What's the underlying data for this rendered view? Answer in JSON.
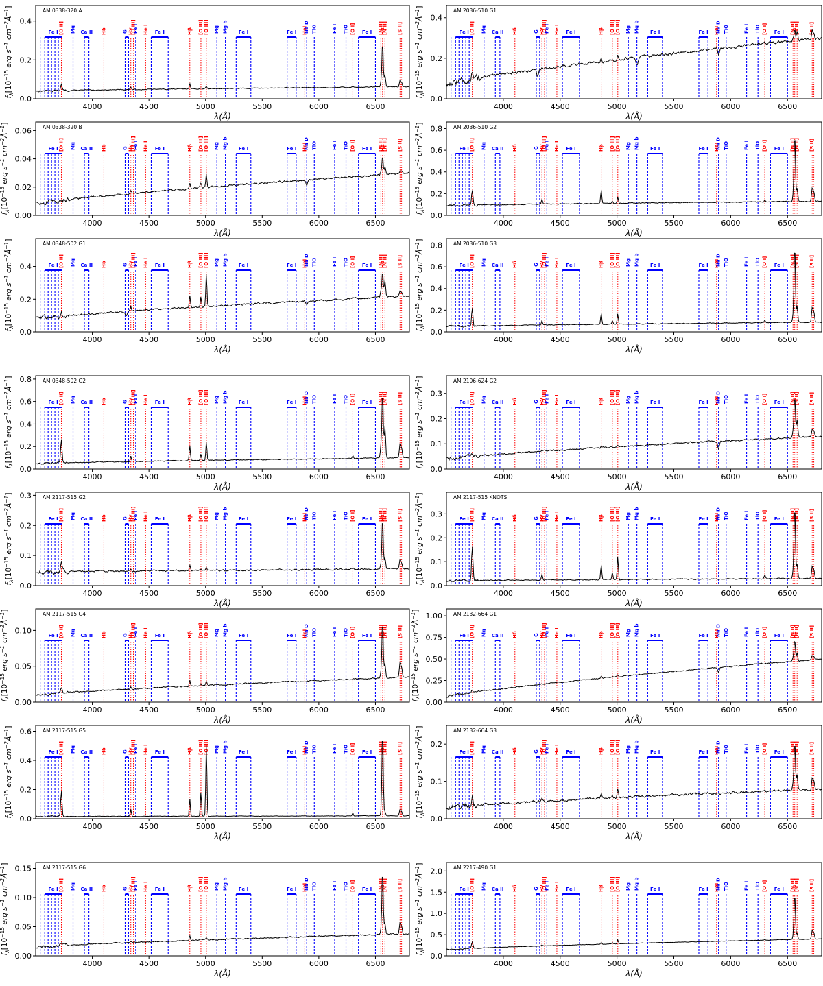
{
  "chart_data": [
    {
      "type": "line",
      "title": "AM 0338-320 A",
      "ylim": [
        0,
        0.48
      ],
      "yticks": [
        0,
        0.2,
        0.4
      ],
      "baseline": [
        0.04,
        0.062
      ],
      "emission": {
        "OII": 0.03,
        "Hb": 0.03,
        "OIII": 0.01,
        "Ha": 0.23,
        "NII": 0.06,
        "SII": 0.03
      },
      "noise": 0.004,
      "absorption": {}
    },
    {
      "type": "line",
      "title": "AM 2036-510 G1",
      "ylim": [
        0,
        0.46
      ],
      "yticks": [
        0,
        0.2,
        0.4
      ],
      "baseline": [
        0.07,
        0.3
      ],
      "emission": {
        "OII": 0.03,
        "Hb": 0.02,
        "OIII": 0.02,
        "Ha": 0.06,
        "NII": 0.04,
        "SII": 0.04
      },
      "noise": 0.012,
      "absorption": {
        "NaD": 0.03,
        "Mgb": 0.04,
        "G": 0.03
      }
    },
    {
      "type": "line",
      "title": "AM 0338-320 B",
      "ylim": [
        0,
        0.066
      ],
      "yticks": [
        0,
        0.02,
        0.04,
        0.06
      ],
      "baseline": [
        0.008,
        0.03
      ],
      "emission": {
        "OII": 0.001,
        "Hb": 0.004,
        "OIII": 0.01,
        "Ha": 0.013,
        "NII": 0.006,
        "SII": 0.002
      },
      "noise": 0.0012,
      "absorption": {
        "NaD": 0.004
      }
    },
    {
      "type": "line",
      "title": "AM 2036-510 G2",
      "ylim": [
        0,
        0.86
      ],
      "yticks": [
        0,
        0.2,
        0.4,
        0.6,
        0.8
      ],
      "baseline": [
        0.09,
        0.13
      ],
      "emission": {
        "OII": 0.15,
        "Hb": 0.12,
        "OIII": 0.06,
        "Ha": 0.63,
        "NII": 0.12,
        "SII": 0.12
      },
      "noise": 0.008,
      "absorption": {}
    },
    {
      "type": "line",
      "title": "AM 0348-502 G1",
      "ylim": [
        0,
        0.57
      ],
      "yticks": [
        0,
        0.2,
        0.4
      ],
      "baseline": [
        0.08,
        0.22
      ],
      "emission": {
        "OII": 0.03,
        "Hb": 0.08,
        "OIII": 0.2,
        "Ha": 0.16,
        "NII": 0.1,
        "SII": 0.03
      },
      "noise": 0.01,
      "absorption": {
        "NaD": 0.02,
        "G": 0.03
      }
    },
    {
      "type": "line",
      "title": "AM 2036-510 G3",
      "ylim": [
        0,
        0.86
      ],
      "yticks": [
        0,
        0.2,
        0.4,
        0.6,
        0.8
      ],
      "baseline": [
        0.05,
        0.09
      ],
      "emission": {
        "OII": 0.17,
        "Hb": 0.1,
        "OIII": 0.1,
        "Ha": 0.72,
        "NII": 0.15,
        "SII": 0.13
      },
      "noise": 0.007,
      "absorption": {}
    },
    {
      "type": "line",
      "title": "AM 0348-502 G2",
      "ylim": [
        0,
        0.83
      ],
      "yticks": [
        0,
        0.2,
        0.4,
        0.6,
        0.8
      ],
      "baseline": [
        0.05,
        0.1
      ],
      "emission": {
        "OII": 0.21,
        "Hb": 0.13,
        "OIII": 0.17,
        "Ha": 0.6,
        "NII": 0.28,
        "SII": 0.12
      },
      "noise": 0.007,
      "absorption": {}
    },
    {
      "type": "line",
      "title": "AM 2106-624 G2",
      "ylim": [
        0,
        0.37
      ],
      "yticks": [
        0,
        0.1,
        0.2,
        0.3
      ],
      "baseline": [
        0.04,
        0.13
      ],
      "emission": {
        "OII": 0.01,
        "Hb": 0.005,
        "OIII": 0.005,
        "Ha": 0.17,
        "NII": 0.07,
        "SII": 0.03
      },
      "noise": 0.006,
      "absorption": {
        "NaD": 0.03
      }
    },
    {
      "type": "line",
      "title": "AM 2117-515 G2",
      "ylim": [
        0,
        0.31
      ],
      "yticks": [
        0,
        0.1,
        0.2,
        0.3
      ],
      "baseline": [
        0.045,
        0.055
      ],
      "emission": {
        "OII": 0.03,
        "Hb": 0.02,
        "OIII": 0.01,
        "Ha": 0.17,
        "NII": 0.04,
        "SII": 0.03
      },
      "noise": 0.005,
      "absorption": {}
    },
    {
      "type": "line",
      "title": "AM 2117-515 KNOTS",
      "ylim": [
        0,
        0.39
      ],
      "yticks": [
        0,
        0.1,
        0.2,
        0.3
      ],
      "baseline": [
        0.02,
        0.03
      ],
      "emission": {
        "OII": 0.14,
        "Hb": 0.06,
        "OIII": 0.1,
        "Ha": 0.31,
        "NII": 0.06,
        "SII": 0.05
      },
      "noise": 0.004,
      "absorption": {}
    },
    {
      "type": "line",
      "title": "AM 2117-515 G4",
      "ylim": [
        0,
        0.13
      ],
      "yticks": [
        0,
        0.05,
        0.1
      ],
      "baseline": [
        0.01,
        0.035
      ],
      "emission": {
        "OII": 0.006,
        "Hb": 0.008,
        "OIII": 0.006,
        "Ha": 0.08,
        "NII": 0.02,
        "SII": 0.02
      },
      "noise": 0.0015,
      "absorption": {}
    },
    {
      "type": "line",
      "title": "AM 2132-664 G1",
      "ylim": [
        0,
        1.08
      ],
      "yticks": [
        0,
        0.25,
        0.5,
        0.75,
        1.0
      ],
      "baseline": [
        0.06,
        0.5
      ],
      "emission": {
        "OII": 0.03,
        "Hb": 0.02,
        "OIII": 0.02,
        "Ha": 0.25,
        "NII": 0.1,
        "SII": 0.05
      },
      "noise": 0.012,
      "absorption": {
        "NaD": 0.06
      }
    },
    {
      "type": "line",
      "title": "AM 2117-515 G5",
      "ylim": [
        0,
        0.64
      ],
      "yticks": [
        0,
        0.2,
        0.4,
        0.6
      ],
      "baseline": [
        0.015,
        0.02
      ],
      "emission": {
        "OII": 0.18,
        "Hb": 0.12,
        "OIII": 0.5,
        "Ha": 0.58,
        "NII": 0.03,
        "SII": 0.04
      },
      "noise": 0.003,
      "absorption": {}
    },
    {
      "type": "line",
      "title": "AM 2132-664 G3",
      "ylim": [
        0,
        0.25
      ],
      "yticks": [
        0,
        0.1,
        0.2
      ],
      "baseline": [
        0.03,
        0.08
      ],
      "emission": {
        "OII": 0.03,
        "Hb": 0.015,
        "OIII": 0.025,
        "Ha": 0.13,
        "NII": 0.04,
        "SII": 0.03
      },
      "noise": 0.006,
      "absorption": {}
    },
    {
      "type": "line",
      "title": "AM 2117-515 G6",
      "ylim": [
        0,
        0.16
      ],
      "yticks": [
        0,
        0.05,
        0.1,
        0.15
      ],
      "baseline": [
        0.015,
        0.038
      ],
      "emission": {
        "OII": 0.004,
        "Hb": 0.008,
        "OIII": 0.004,
        "Ha": 0.11,
        "NII": 0.02,
        "SII": 0.02
      },
      "noise": 0.002,
      "absorption": {}
    },
    {
      "type": "line",
      "title": "AM 2217-490 G1",
      "ylim": [
        0,
        2.2
      ],
      "yticks": [
        0,
        0.5,
        1.0,
        1.5,
        2.0
      ],
      "baseline": [
        0.15,
        0.4
      ],
      "emission": {
        "OII": 0.15,
        "Hb": 0.05,
        "OIII": 0.1,
        "Ha": 1.1,
        "NII": 0.15,
        "SII": 0.2
      },
      "noise": 0.01,
      "absorption": {}
    }
  ],
  "axes": {
    "xlim": [
      3500,
      6800
    ],
    "xticks": [
      4000,
      4500,
      5000,
      5500,
      6000,
      6500
    ],
    "xlabel": "λ(Å)",
    "ylabel_main": "f",
    "ylabel_sub": "λ",
    "ylabel_rest": "[10",
    "ylabel_exp": "−15",
    "ylabel_mid": " erg s",
    "ylabel_exp2": "−1",
    "ylabel_mid2": " cm",
    "ylabel_exp3": "−2",
    "ylabel_mid3": "Å",
    "ylabel_exp4": "−1",
    "ylabel_end": "]"
  },
  "line_markers": {
    "blue_bands": [
      {
        "label": "Fe I",
        "from": 3580,
        "to": 3730
      },
      {
        "label": "Ca II",
        "from": 3930,
        "to": 3970
      },
      {
        "label": "",
        "from": 4290,
        "to": 4320
      },
      {
        "label": "Fe I",
        "from": 4520,
        "to": 4670
      },
      {
        "label": "Fe I",
        "from": 5270,
        "to": 5400
      },
      {
        "label": "Fe I",
        "from": 5720,
        "to": 5800
      },
      {
        "label": "Fe I",
        "from": 6350,
        "to": 6500
      }
    ],
    "blue_lines": [
      {
        "label": "",
        "x": 3540
      },
      {
        "label": "",
        "x": 3580
      },
      {
        "label": "",
        "x": 3610
      },
      {
        "label": "",
        "x": 3640
      },
      {
        "label": "",
        "x": 3670
      },
      {
        "label": "",
        "x": 3700
      },
      {
        "label": "Mg",
        "x": 3830
      },
      {
        "label": "",
        "x": 3930
      },
      {
        "label": "",
        "x": 3970
      },
      {
        "label": "G",
        "x": 4290
      },
      {
        "label": "",
        "x": 4320
      },
      {
        "label": "Fe I",
        "x": 4383
      },
      {
        "label": "",
        "x": 4520
      },
      {
        "label": "",
        "x": 4670
      },
      {
        "label": "Mg",
        "x": 5100
      },
      {
        "label": "Mg b",
        "x": 5175
      },
      {
        "label": "",
        "x": 5270
      },
      {
        "label": "",
        "x": 5400
      },
      {
        "label": "",
        "x": 5720
      },
      {
        "label": "",
        "x": 5800
      },
      {
        "label": "Na D",
        "x": 5893
      },
      {
        "label": "TiO",
        "x": 5960
      },
      {
        "label": "Fe I",
        "x": 6140
      },
      {
        "label": "TiO",
        "x": 6240
      },
      {
        "label": "",
        "x": 6350
      },
      {
        "label": "",
        "x": 6500
      }
    ],
    "red_lines": [
      {
        "label": "[O II]",
        "x": 3727
      },
      {
        "label": "Hδ",
        "x": 4102
      },
      {
        "label": "Hγ",
        "x": 4340
      },
      {
        "label": "[O III]",
        "x": 4363
      },
      {
        "label": "He I",
        "x": 4471
      },
      {
        "label": "Hβ",
        "x": 4861
      },
      {
        "label": "[O III]",
        "x": 4959
      },
      {
        "label": "[O III]",
        "x": 5007
      },
      {
        "label": "HeI",
        "x": 5876
      },
      {
        "label": "[O I]",
        "x": 6300
      },
      {
        "label": "[N II]",
        "x": 6548
      },
      {
        "label": "Hα",
        "x": 6563
      },
      {
        "label": "[N II]",
        "x": 6584
      },
      {
        "label": "[S II]",
        "x": 6717
      },
      {
        "label": "",
        "x": 6731
      }
    ]
  },
  "colors": {
    "spectrum": "#000000",
    "blue_marker": "#0000ff",
    "red_marker": "#ff0000",
    "fill": "#c0392b"
  }
}
